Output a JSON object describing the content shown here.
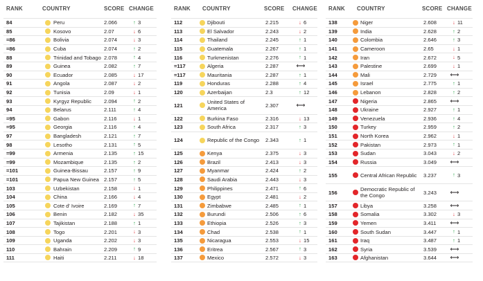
{
  "headers": {
    "rank": "RANK",
    "country": "COUNTRY",
    "score": "SCORE",
    "change": "CHANGE"
  },
  "colors": {
    "yellow": "#f6d55c",
    "orange": "#f59b3c",
    "red": "#e3262a",
    "up": "#2aa54a",
    "down": "#e0262f"
  },
  "columns": [
    {
      "rows": [
        {
          "rank": "84",
          "country": "Peru",
          "score": "2.066",
          "dir": "up",
          "change": "3",
          "color": "yellow"
        },
        {
          "rank": "85",
          "country": "Kosovo",
          "score": "2.07",
          "dir": "down",
          "change": "6",
          "color": "yellow"
        },
        {
          "rank": "=86",
          "country": "Bolivia",
          "score": "2.074",
          "dir": "down",
          "change": "3",
          "color": "yellow"
        },
        {
          "rank": "=86",
          "country": "Cuba",
          "score": "2.074",
          "dir": "up",
          "change": "2",
          "color": "yellow"
        },
        {
          "rank": "88",
          "country": "Trinidad and Tobago",
          "score": "2.078",
          "dir": "up",
          "change": "4",
          "color": "yellow"
        },
        {
          "rank": "89",
          "country": "Guinea",
          "score": "2.082",
          "dir": "up",
          "change": "7",
          "color": "yellow"
        },
        {
          "rank": "90",
          "country": "Ecuador",
          "score": "2.085",
          "dir": "down",
          "change": "17",
          "color": "yellow"
        },
        {
          "rank": "91",
          "country": "Angola",
          "score": "2.087",
          "dir": "down",
          "change": "2",
          "color": "yellow"
        },
        {
          "rank": "92",
          "country": "Tunisia",
          "score": "2.09",
          "dir": "down",
          "change": "1",
          "color": "yellow"
        },
        {
          "rank": "93",
          "country": "Kyrgyz Republic",
          "score": "2.094",
          "dir": "up",
          "change": "2",
          "color": "yellow"
        },
        {
          "rank": "94",
          "country": "Belarus",
          "score": "2.111",
          "dir": "up",
          "change": "4",
          "color": "yellow"
        },
        {
          "rank": "=95",
          "country": "Gabon",
          "score": "2.116",
          "dir": "down",
          "change": "1",
          "color": "yellow"
        },
        {
          "rank": "=95",
          "country": "Georgia",
          "score": "2.116",
          "dir": "up",
          "change": "4",
          "color": "yellow"
        },
        {
          "rank": "97",
          "country": "Bangladesh",
          "score": "2.121",
          "dir": "up",
          "change": "7",
          "color": "yellow"
        },
        {
          "rank": "98",
          "country": "Lesotho",
          "score": "2.131",
          "dir": "up",
          "change": "5",
          "color": "yellow"
        },
        {
          "rank": "=99",
          "country": "Armenia",
          "score": "2.135",
          "dir": "up",
          "change": "15",
          "color": "yellow"
        },
        {
          "rank": "=99",
          "country": "Mozambique",
          "score": "2.135",
          "dir": "up",
          "change": "2",
          "color": "yellow"
        },
        {
          "rank": "=101",
          "country": "Guinea-Bissau",
          "score": "2.157",
          "dir": "up",
          "change": "9",
          "color": "yellow"
        },
        {
          "rank": "=101",
          "country": "Papua New Guinea",
          "score": "2.157",
          "dir": "up",
          "change": "5",
          "color": "yellow"
        },
        {
          "rank": "103",
          "country": "Uzbekistan",
          "score": "2.158",
          "dir": "down",
          "change": "1",
          "color": "yellow"
        },
        {
          "rank": "104",
          "country": "China",
          "score": "2.166",
          "dir": "down",
          "change": "4",
          "color": "yellow"
        },
        {
          "rank": "105",
          "country": "Cote d' Ivoire",
          "score": "2.169",
          "dir": "up",
          "change": "7",
          "color": "yellow"
        },
        {
          "rank": "106",
          "country": "Benin",
          "score": "2.182",
          "dir": "down",
          "change": "35",
          "color": "yellow"
        },
        {
          "rank": "107",
          "country": "Tajikistan",
          "score": "2.188",
          "dir": "up",
          "change": "1",
          "color": "yellow"
        },
        {
          "rank": "108",
          "country": "Togo",
          "score": "2.201",
          "dir": "down",
          "change": "3",
          "color": "yellow"
        },
        {
          "rank": "109",
          "country": "Uganda",
          "score": "2.202",
          "dir": "down",
          "change": "3",
          "color": "yellow"
        },
        {
          "rank": "110",
          "country": "Bahrain",
          "score": "2.209",
          "dir": "up",
          "change": "9",
          "color": "yellow"
        },
        {
          "rank": "111",
          "country": "Haiti",
          "score": "2.211",
          "dir": "down",
          "change": "18",
          "color": "yellow"
        }
      ]
    },
    {
      "rows": [
        {
          "rank": "112",
          "country": "Djibouti",
          "score": "2.215",
          "dir": "down",
          "change": "6",
          "color": "yellow"
        },
        {
          "rank": "113",
          "country": "El Salvador",
          "score": "2.243",
          "dir": "down",
          "change": "2",
          "color": "yellow"
        },
        {
          "rank": "114",
          "country": "Thailand",
          "score": "2.245",
          "dir": "up",
          "change": "1",
          "color": "yellow"
        },
        {
          "rank": "115",
          "country": "Guatemala",
          "score": "2.267",
          "dir": "up",
          "change": "1",
          "color": "yellow"
        },
        {
          "rank": "116",
          "country": "Turkmenistan",
          "score": "2.276",
          "dir": "up",
          "change": "1",
          "color": "yellow"
        },
        {
          "rank": "=117",
          "country": "Algeria",
          "score": "2.287",
          "dir": "same",
          "change": "",
          "color": "yellow"
        },
        {
          "rank": "=117",
          "country": "Mauritania",
          "score": "2.287",
          "dir": "up",
          "change": "1",
          "color": "yellow"
        },
        {
          "rank": "119",
          "country": "Honduras",
          "score": "2.288",
          "dir": "up",
          "change": "4",
          "color": "yellow"
        },
        {
          "rank": "120",
          "country": "Azerbaijan",
          "score": "2.3",
          "dir": "up",
          "change": "12",
          "color": "yellow"
        },
        {
          "rank": "121",
          "country": "United States of America",
          "score": "2.307",
          "dir": "same",
          "change": "",
          "color": "yellow",
          "tall": true
        },
        {
          "rank": "122",
          "country": "Burkina Faso",
          "score": "2.316",
          "dir": "down",
          "change": "13",
          "color": "yellow"
        },
        {
          "rank": "123",
          "country": "South Africa",
          "score": "2.317",
          "dir": "up",
          "change": "3",
          "color": "yellow"
        },
        {
          "rank": "124",
          "country": "Republic of the Congo",
          "score": "2.343",
          "dir": "up",
          "change": "1",
          "color": "yellow",
          "tall": true
        },
        {
          "rank": "125",
          "country": "Kenya",
          "score": "2.375",
          "dir": "down",
          "change": "3",
          "color": "orange"
        },
        {
          "rank": "126",
          "country": "Brazil",
          "score": "2.413",
          "dir": "down",
          "change": "3",
          "color": "orange"
        },
        {
          "rank": "127",
          "country": "Myanmar",
          "score": "2.424",
          "dir": "up",
          "change": "2",
          "color": "orange"
        },
        {
          "rank": "128",
          "country": "Saudi Arabia",
          "score": "2.443",
          "dir": "down",
          "change": "3",
          "color": "orange"
        },
        {
          "rank": "129",
          "country": "Philippines",
          "score": "2.471",
          "dir": "up",
          "change": "6",
          "color": "orange"
        },
        {
          "rank": "130",
          "country": "Egypt",
          "score": "2.481",
          "dir": "down",
          "change": "2",
          "color": "orange"
        },
        {
          "rank": "131",
          "country": "Zimbabwe",
          "score": "2.485",
          "dir": "up",
          "change": "1",
          "color": "orange"
        },
        {
          "rank": "132",
          "country": "Burundi",
          "score": "2.506",
          "dir": "up",
          "change": "6",
          "color": "orange"
        },
        {
          "rank": "133",
          "country": "Ethiopia",
          "score": "2.526",
          "dir": "up",
          "change": "3",
          "color": "orange"
        },
        {
          "rank": "134",
          "country": "Chad",
          "score": "2.538",
          "dir": "up",
          "change": "1",
          "color": "orange"
        },
        {
          "rank": "135",
          "country": "Nicaragua",
          "score": "2.553",
          "dir": "down",
          "change": "15",
          "color": "orange"
        },
        {
          "rank": "136",
          "country": "Eritrea",
          "score": "2.567",
          "dir": "up",
          "change": "3",
          "color": "orange"
        },
        {
          "rank": "137",
          "country": "Mexico",
          "score": "2.572",
          "dir": "down",
          "change": "3",
          "color": "orange"
        }
      ]
    },
    {
      "rows": [
        {
          "rank": "138",
          "country": "Niger",
          "score": "2.608",
          "dir": "down",
          "change": "11",
          "color": "orange"
        },
        {
          "rank": "139",
          "country": "India",
          "score": "2.628",
          "dir": "up",
          "change": "2",
          "color": "orange"
        },
        {
          "rank": "140",
          "country": "Colombia",
          "score": "2.646",
          "dir": "up",
          "change": "3",
          "color": "orange"
        },
        {
          "rank": "141",
          "country": "Cameroon",
          "score": "2.65",
          "dir": "down",
          "change": "1",
          "color": "orange"
        },
        {
          "rank": "142",
          "country": "Iran",
          "score": "2.672",
          "dir": "down",
          "change": "5",
          "color": "orange"
        },
        {
          "rank": "143",
          "country": "Palestine",
          "score": "2.699",
          "dir": "down",
          "change": "1",
          "color": "orange"
        },
        {
          "rank": "144",
          "country": "Mali",
          "score": "2.729",
          "dir": "same",
          "change": "",
          "color": "orange"
        },
        {
          "rank": "145",
          "country": "Israel",
          "score": "2.775",
          "dir": "up",
          "change": "1",
          "color": "orange"
        },
        {
          "rank": "146",
          "country": "Lebanon",
          "score": "2.828",
          "dir": "up",
          "change": "2",
          "color": "orange"
        },
        {
          "rank": "147",
          "country": "Nigeria",
          "score": "2.865",
          "dir": "same",
          "change": "",
          "color": "red"
        },
        {
          "rank": "148",
          "country": "Ukraine",
          "score": "2.927",
          "dir": "up",
          "change": "1",
          "color": "red"
        },
        {
          "rank": "149",
          "country": "Venezuela",
          "score": "2.936",
          "dir": "up",
          "change": "4",
          "color": "red"
        },
        {
          "rank": "150",
          "country": "Turkey",
          "score": "2.959",
          "dir": "up",
          "change": "2",
          "color": "red"
        },
        {
          "rank": "151",
          "country": "North Korea",
          "score": "2.962",
          "dir": "down",
          "change": "1",
          "color": "red"
        },
        {
          "rank": "152",
          "country": "Pakistan",
          "score": "2.973",
          "dir": "up",
          "change": "1",
          "color": "red"
        },
        {
          "rank": "153",
          "country": "Sudan",
          "score": "3.043",
          "dir": "down",
          "change": "2",
          "color": "red"
        },
        {
          "rank": "154",
          "country": "Russia",
          "score": "3.049",
          "dir": "same",
          "change": "",
          "color": "red"
        },
        {
          "rank": "155",
          "country": "Central African Republic",
          "score": "3.237",
          "dir": "up",
          "change": "3",
          "color": "red",
          "tall": true
        },
        {
          "rank": "156",
          "country": "Democratic Republic of the Congo",
          "score": "3.243",
          "dir": "same",
          "change": "",
          "color": "red",
          "tall": true
        },
        {
          "rank": "157",
          "country": "Libya",
          "score": "3.258",
          "dir": "same",
          "change": "",
          "color": "red"
        },
        {
          "rank": "158",
          "country": "Somalia",
          "score": "3.302",
          "dir": "down",
          "change": "3",
          "color": "red"
        },
        {
          "rank": "159",
          "country": "Yemen",
          "score": "3.411",
          "dir": "same",
          "change": "",
          "color": "red"
        },
        {
          "rank": "160",
          "country": "South Sudan",
          "score": "3.447",
          "dir": "up",
          "change": "1",
          "color": "red"
        },
        {
          "rank": "161",
          "country": "Iraq",
          "score": "3.487",
          "dir": "up",
          "change": "1",
          "color": "red"
        },
        {
          "rank": "162",
          "country": "Syria",
          "score": "3.539",
          "dir": "same",
          "change": "",
          "color": "red"
        },
        {
          "rank": "163",
          "country": "Afghanistan",
          "score": "3.644",
          "dir": "same",
          "change": "",
          "color": "red"
        }
      ]
    }
  ]
}
